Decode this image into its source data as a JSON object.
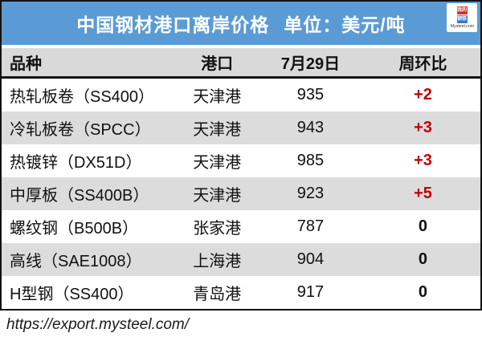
{
  "banner": {
    "title": "中国钢材港口离岸价格",
    "unit_label": "单位：美元/吨"
  },
  "logo": {
    "top_square_text": "我的",
    "bottom_square_text": "钢铁",
    "caption": "Mysteel.com"
  },
  "table": {
    "columns": [
      "品种",
      "港口",
      "7月29日",
      "周环比"
    ],
    "rows": [
      {
        "product": "热轧板卷（SS400）",
        "port": "天津港",
        "price": "935",
        "wow_change": "+2"
      },
      {
        "product": "冷轧板卷（SPCC）",
        "port": "天津港",
        "price": "943",
        "wow_change": "+3"
      },
      {
        "product": "热镀锌（DX51D）",
        "port": "天津港",
        "price": "985",
        "wow_change": "+3"
      },
      {
        "product": "中厚板（SS400B）",
        "port": "天津港",
        "price": "923",
        "wow_change": "+5"
      },
      {
        "product": "螺纹钢（B500B）",
        "port": "张家港",
        "price": "787",
        "wow_change": "0"
      },
      {
        "product": "高线（SAE1008）",
        "port": "上海港",
        "price": "904",
        "wow_change": "0"
      },
      {
        "product": "H型钢（SS400）",
        "port": "青岛港",
        "price": "917",
        "wow_change": "0"
      }
    ]
  },
  "footer": {
    "url": "https://export.mysteel.com/"
  },
  "colors": {
    "banner_blue": "#5B9BD5",
    "header_grey": "#D9D9D9",
    "row_grey": "#DCDCDC",
    "change_red": "#C00000",
    "logo_red": "#CC3328",
    "logo_blue": "#3C78C8"
  }
}
